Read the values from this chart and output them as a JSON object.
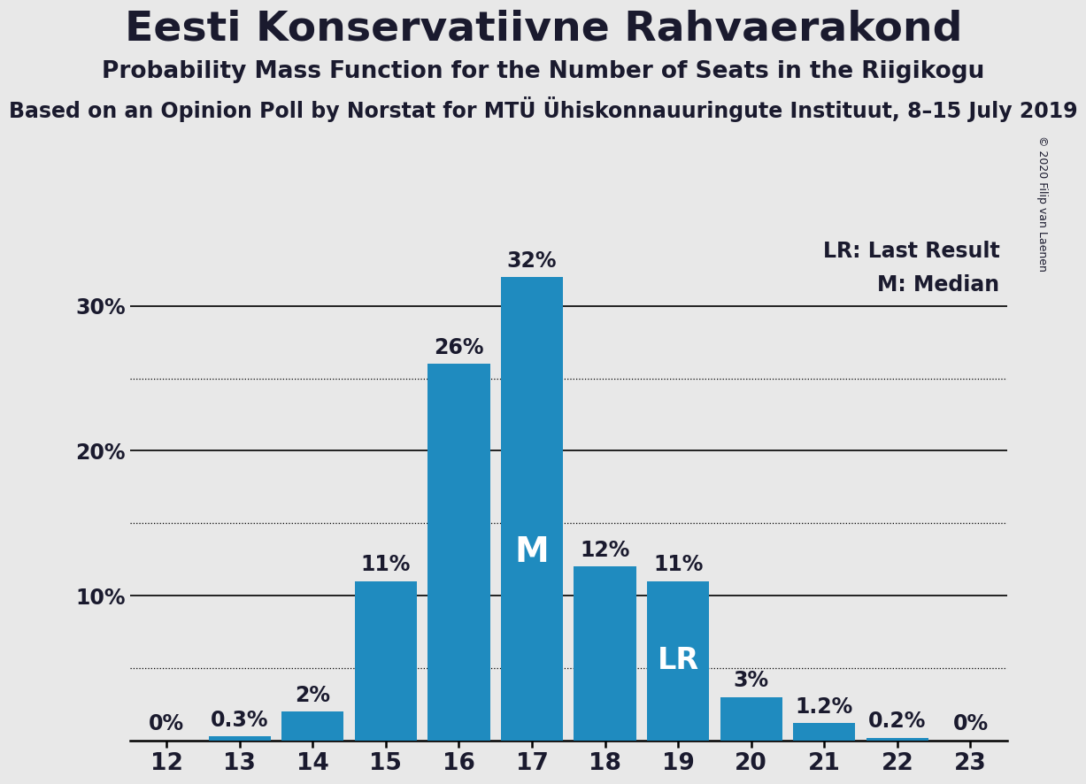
{
  "title": "Eesti Konservatiivne Rahvaerakond",
  "subtitle1": "Probability Mass Function for the Number of Seats in the Riigikogu",
  "subtitle2": "Based on an Opinion Poll by Norstat for MTÜ Ühiskonnauuringute Instituut, 8–15 July 2019",
  "copyright": "© 2020 Filip van Laenen",
  "seats": [
    12,
    13,
    14,
    15,
    16,
    17,
    18,
    19,
    20,
    21,
    22,
    23
  ],
  "probabilities": [
    0.0,
    0.3,
    2.0,
    11.0,
    26.0,
    32.0,
    12.0,
    11.0,
    3.0,
    1.2,
    0.2,
    0.0
  ],
  "bar_color": "#1f8bbf",
  "background_color": "#e8e8e8",
  "median_seat": 17,
  "lr_seat": 19,
  "ylim": [
    0,
    35
  ],
  "solid_gridlines": [
    10,
    20,
    30
  ],
  "dotted_gridlines": [
    5,
    15,
    25
  ],
  "title_fontsize": 34,
  "subtitle1_fontsize": 19,
  "subtitle2_fontsize": 17,
  "bar_label_fontsize": 17,
  "ytick_fontsize": 17,
  "xtick_fontsize": 19,
  "legend_fontsize": 17,
  "copyright_fontsize": 9,
  "bar_label_color": "#1a1a2e",
  "text_color": "#1a1a2e"
}
